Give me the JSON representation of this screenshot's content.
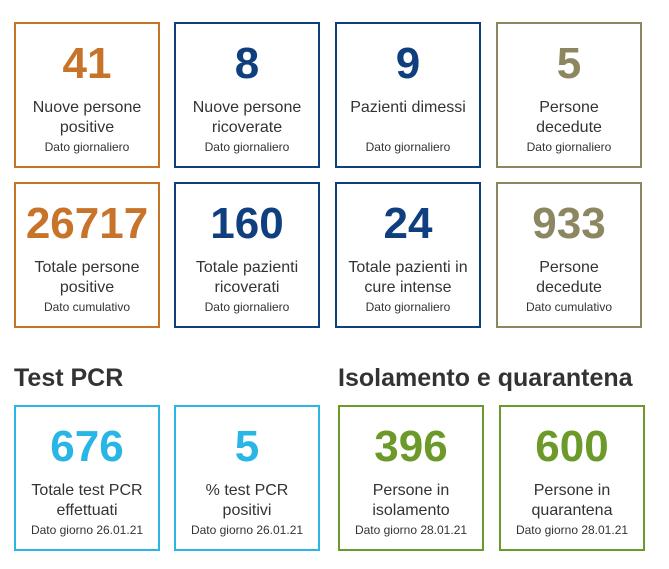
{
  "colors": {
    "orange": "#c8732a",
    "navy": "#0f3f7e",
    "olive": "#8c8761",
    "cyan": "#29b6e6",
    "green": "#6c9a2a",
    "text": "#333333"
  },
  "daily": [
    {
      "value": "41",
      "label1": "Nuove persone",
      "label2": "positive",
      "sub": "Dato giornaliero"
    },
    {
      "value": "8",
      "label1": "Nuove persone",
      "label2": "ricoverate",
      "sub": "Dato giornaliero"
    },
    {
      "value": "9",
      "label1": "Pazienti dimessi",
      "label2": "",
      "sub": "Dato giornaliero"
    },
    {
      "value": "5",
      "label1": "Persone",
      "label2": "decedute",
      "sub": "Dato giornaliero"
    }
  ],
  "cumulative": [
    {
      "value": "26717",
      "label1": "Totale persone",
      "label2": "positive",
      "sub": "Dato cumulativo"
    },
    {
      "value": "160",
      "label1": "Totale pazienti",
      "label2": "ricoverati",
      "sub": "Dato giornaliero"
    },
    {
      "value": "24",
      "label1": "Totale pazienti in",
      "label2": "cure intense",
      "sub": "Dato giornaliero"
    },
    {
      "value": "933",
      "label1": "Persone",
      "label2": "decedute",
      "sub": "Dato cumulativo"
    }
  ],
  "sections": {
    "pcr_title": "Test PCR",
    "isolation_title": "Isolamento e quarantena"
  },
  "pcr": [
    {
      "value": "676",
      "label1": "Totale test PCR",
      "label2": "effettuati",
      "sub": "Dato giorno 26.01.21"
    },
    {
      "value": "5",
      "label1": "% test PCR",
      "label2": "positivi",
      "sub": "Dato giorno 26.01.21"
    }
  ],
  "isolation": [
    {
      "value": "396",
      "label1": "Persone in",
      "label2": "isolamento",
      "sub": "Dato giorno 28.01.21"
    },
    {
      "value": "600",
      "label1": "Persone in",
      "label2": "quarantena",
      "sub": "Dato giorno 28.01.21"
    }
  ]
}
